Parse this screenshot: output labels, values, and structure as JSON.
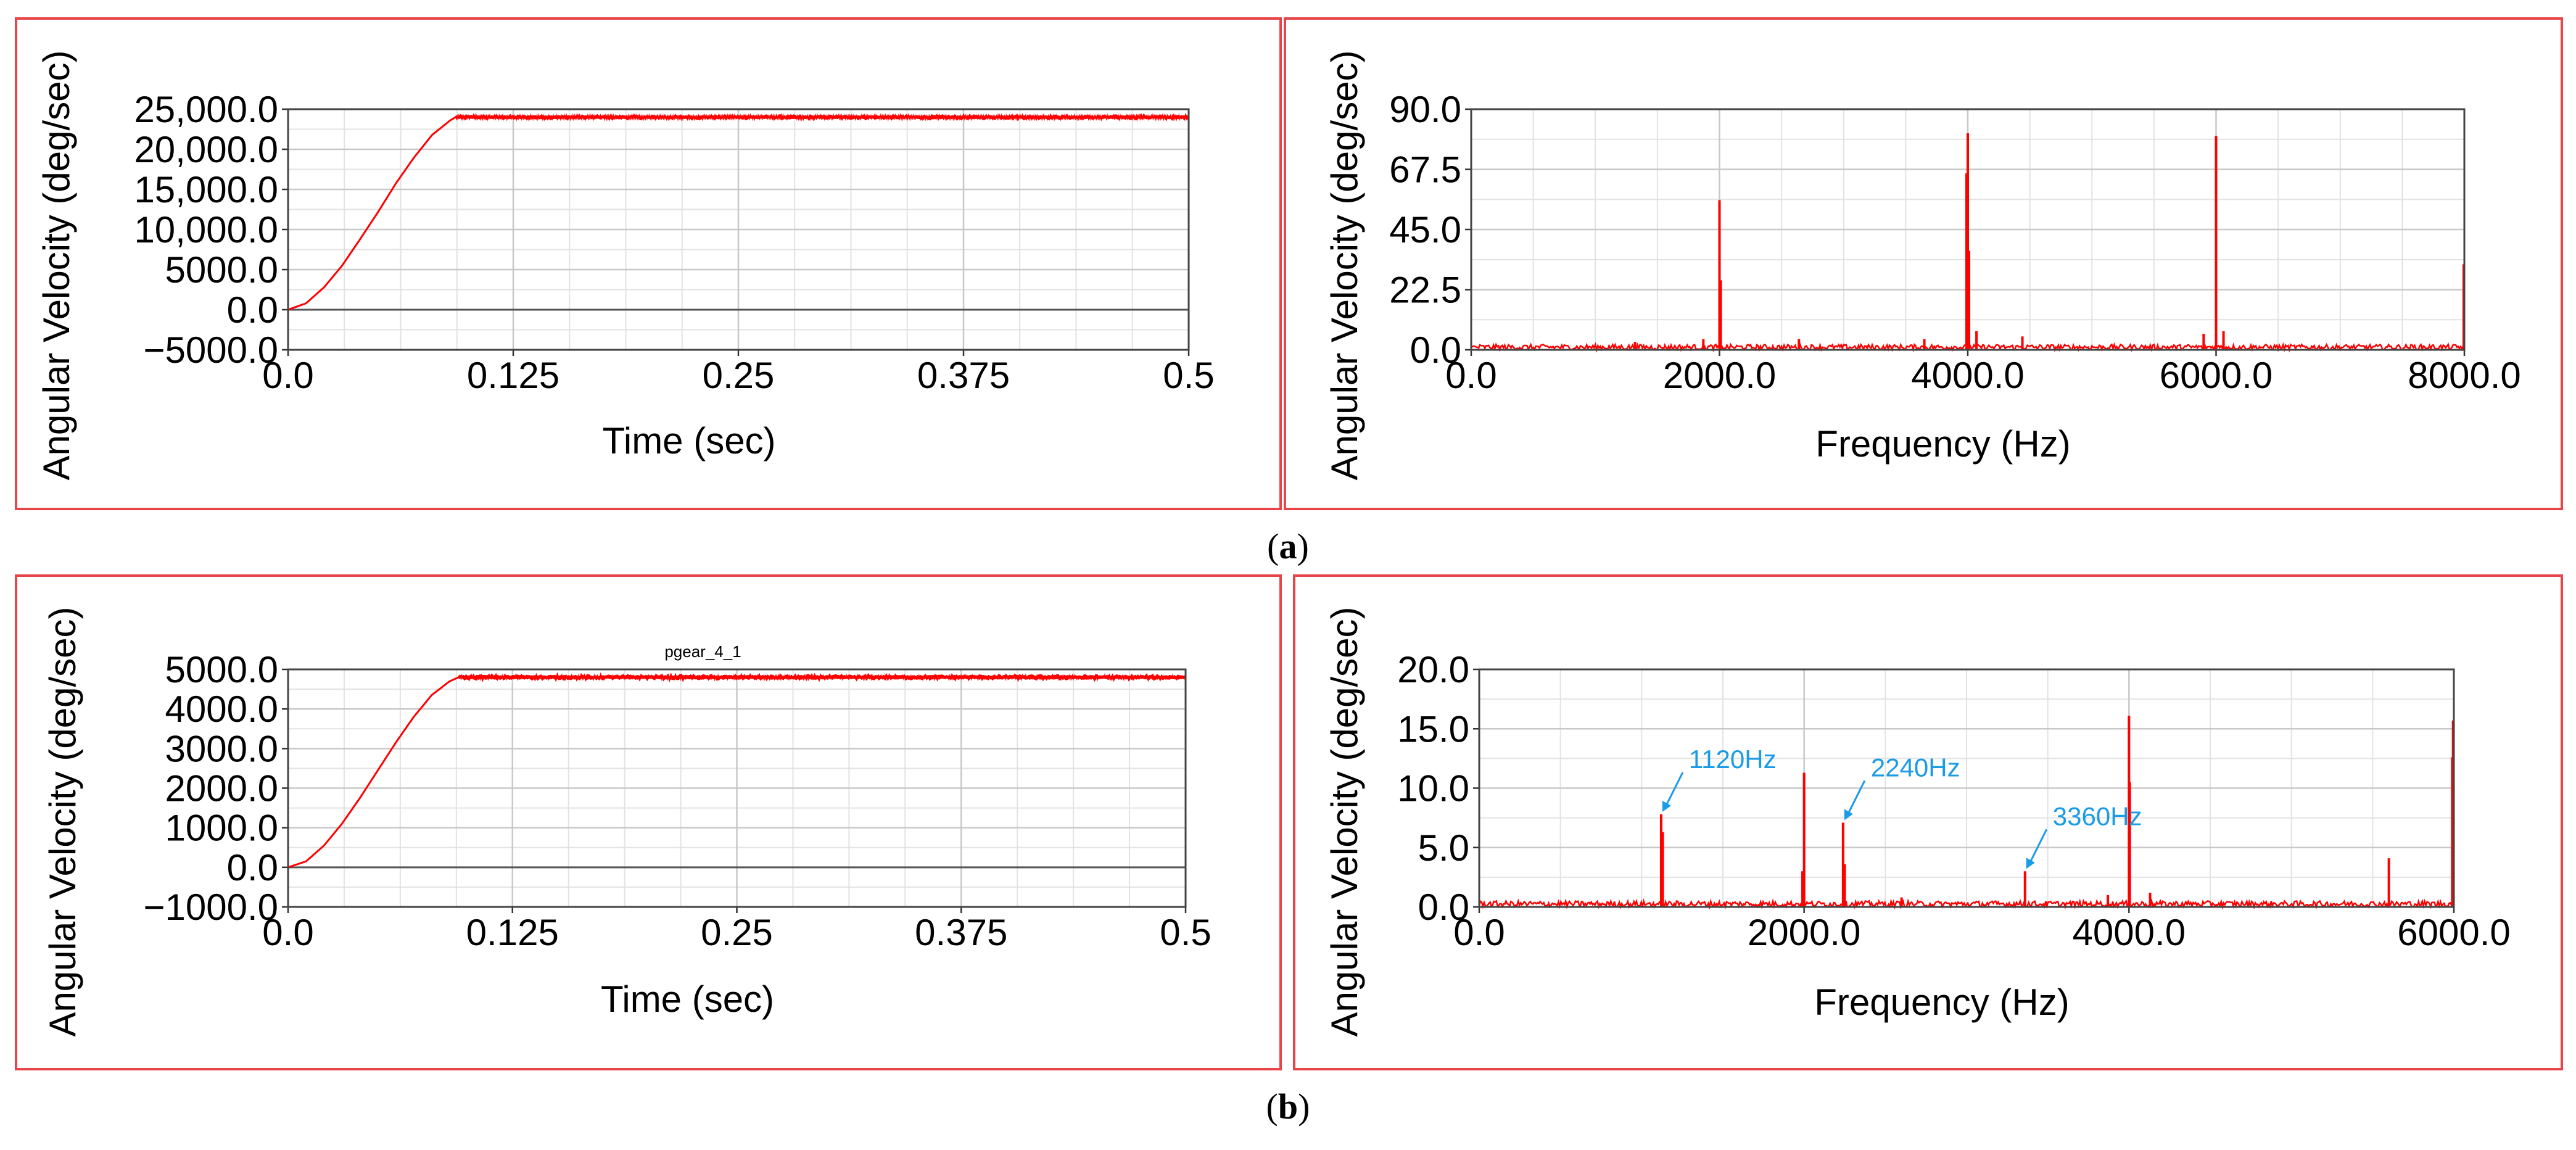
{
  "colors": {
    "frame": "#e8454a",
    "series": "#ff0000",
    "annotation": "#1a9be6",
    "grid": "#c8c8c8",
    "zero_line": "#555555"
  },
  "captions": [
    {
      "open": "(",
      "letter": "a",
      "close": ")"
    },
    {
      "open": "(",
      "letter": "b",
      "close": ")"
    }
  ],
  "chart_data": [
    {
      "id": "a-time",
      "type": "line",
      "title": "",
      "xlabel": "Time (sec)",
      "ylabel": "Angular Velocity (deg/sec)",
      "xlim": [
        0,
        0.5
      ],
      "ylim": [
        -5000,
        25000
      ],
      "xticks": [
        0,
        0.125,
        0.25,
        0.375,
        0.5
      ],
      "xtick_labels": [
        "0.0",
        "0.125",
        "0.25",
        "0.375",
        "0.5"
      ],
      "yticks": [
        -5000,
        0,
        5000,
        10000,
        15000,
        20000,
        25000
      ],
      "ytick_labels": [
        "−5000.0",
        "0.0",
        "5000.0",
        "10,000.0",
        "15,000.0",
        "20,000.0",
        "25,000.0"
      ],
      "steady_value": 24000,
      "settle_time": 0.093,
      "ripple": 250,
      "series": [
        {
          "name": "angular velocity",
          "x": [
            0,
            0.01,
            0.02,
            0.03,
            0.04,
            0.05,
            0.06,
            0.07,
            0.08,
            0.09,
            0.093,
            0.1,
            0.2,
            0.3,
            0.4,
            0.5
          ],
          "y": [
            0,
            800,
            2800,
            5500,
            8800,
            12200,
            15800,
            19000,
            21800,
            23600,
            24000,
            24000,
            24000,
            24000,
            24000,
            24000
          ]
        }
      ]
    },
    {
      "id": "a-freq",
      "type": "line",
      "title": "",
      "xlabel": "Frequency (Hz)",
      "ylabel": "Angular Velocity (deg/sec)",
      "xlim": [
        0,
        8000
      ],
      "ylim": [
        0,
        90
      ],
      "xticks": [
        0,
        2000,
        4000,
        6000,
        8000
      ],
      "xtick_labels": [
        "0.0",
        "2000.0",
        "4000.0",
        "6000.0",
        "8000.0"
      ],
      "yticks": [
        0,
        22.5,
        45,
        67.5,
        90
      ],
      "ytick_labels": [
        "0.0",
        "22.5",
        "45.0",
        "67.5",
        "90.0"
      ],
      "peaks": [
        {
          "x": 2000,
          "y": 56
        },
        {
          "x": 2010,
          "y": 26
        },
        {
          "x": 4000,
          "y": 81
        },
        {
          "x": 3990,
          "y": 66
        },
        {
          "x": 4010,
          "y": 37
        },
        {
          "x": 6000,
          "y": 80
        },
        {
          "x": 7995,
          "y": 32
        },
        {
          "x": 4070,
          "y": 7
        },
        {
          "x": 6060,
          "y": 7
        },
        {
          "x": 5900,
          "y": 6
        },
        {
          "x": 2640,
          "y": 4
        },
        {
          "x": 4440,
          "y": 5
        },
        {
          "x": 3650,
          "y": 4
        },
        {
          "x": 1320,
          "y": 3
        },
        {
          "x": 1870,
          "y": 4
        }
      ],
      "noise_level": 2,
      "annotations": []
    },
    {
      "id": "b-time",
      "type": "line",
      "title": "pgear_4_1",
      "xlabel": "Time (sec)",
      "ylabel": "Angular Velocity (deg/sec)",
      "xlim": [
        0,
        0.5
      ],
      "ylim": [
        -1000,
        5000
      ],
      "xticks": [
        0,
        0.125,
        0.25,
        0.375,
        0.5
      ],
      "xtick_labels": [
        "0.0",
        "0.125",
        "0.25",
        "0.375",
        "0.5"
      ],
      "yticks": [
        -1000,
        0,
        1000,
        2000,
        3000,
        4000,
        5000
      ],
      "ytick_labels": [
        "−1000.0",
        "0.0",
        "1000.0",
        "2000.0",
        "3000.0",
        "4000.0",
        "5000.0"
      ],
      "steady_value": 4800,
      "settle_time": 0.095,
      "ripple": 60,
      "series": [
        {
          "name": "angular velocity",
          "x": [
            0,
            0.01,
            0.02,
            0.03,
            0.04,
            0.05,
            0.06,
            0.07,
            0.08,
            0.09,
            0.095,
            0.1,
            0.2,
            0.3,
            0.4,
            0.5
          ],
          "y": [
            0,
            150,
            550,
            1100,
            1750,
            2450,
            3150,
            3800,
            4350,
            4700,
            4800,
            4800,
            4800,
            4800,
            4800,
            4800
          ]
        }
      ]
    },
    {
      "id": "b-freq",
      "type": "line",
      "title": "",
      "xlabel": "Frequency (Hz)",
      "ylabel": "Angular Velocity (deg/sec)",
      "xlim": [
        0,
        6000
      ],
      "ylim": [
        0,
        20
      ],
      "xticks": [
        0,
        2000,
        4000,
        6000
      ],
      "xtick_labels": [
        "0.0",
        "2000.0",
        "4000.0",
        "6000.0"
      ],
      "yticks": [
        0,
        5,
        10,
        15,
        20
      ],
      "ytick_labels": [
        "0.0",
        "5.0",
        "10.0",
        "15.0",
        "20.0"
      ],
      "peaks": [
        {
          "x": 1120,
          "y": 7.8
        },
        {
          "x": 1130,
          "y": 6.3
        },
        {
          "x": 2000,
          "y": 11.3
        },
        {
          "x": 1990,
          "y": 3.0
        },
        {
          "x": 2240,
          "y": 7.1
        },
        {
          "x": 2250,
          "y": 3.6
        },
        {
          "x": 3360,
          "y": 3.0
        },
        {
          "x": 4000,
          "y": 16.1
        },
        {
          "x": 4005,
          "y": 10.5
        },
        {
          "x": 5600,
          "y": 4.1
        },
        {
          "x": 5995,
          "y": 15.7
        },
        {
          "x": 5990,
          "y": 12.6
        },
        {
          "x": 4130,
          "y": 1.2
        },
        {
          "x": 3870,
          "y": 1.0
        },
        {
          "x": 2600,
          "y": 0.8
        }
      ],
      "noise_level": 0.5,
      "annotations": [
        {
          "text": "1120Hz",
          "x": 1120,
          "y": 7.8
        },
        {
          "text": "2240Hz",
          "x": 2240,
          "y": 7.1
        },
        {
          "text": "3360Hz",
          "x": 3360,
          "y": 3.0
        }
      ]
    }
  ]
}
